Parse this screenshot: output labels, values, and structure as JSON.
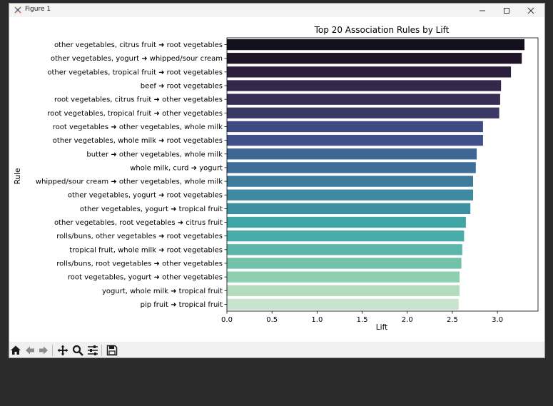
{
  "window": {
    "title": "Figure 1",
    "minimize_icon": "minimize-icon",
    "maximize_icon": "maximize-icon",
    "close_icon": "close-icon"
  },
  "toolbar": {
    "buttons": [
      "home-icon",
      "back-arrow-icon",
      "forward-arrow-icon",
      "pan-icon",
      "zoom-icon",
      "configure-subplots-icon",
      "save-icon"
    ]
  },
  "chart_data": {
    "type": "bar",
    "orientation": "horizontal",
    "title": "Top 20 Association Rules by Lift",
    "xlabel": "Lift",
    "ylabel": "Rule",
    "xlim": [
      0,
      3.45
    ],
    "xticks": [
      "0.0",
      "0.5",
      "1.0",
      "1.5",
      "2.0",
      "2.5",
      "3.0"
    ],
    "grid": false,
    "categories": [
      "other vegetables, citrus fruit ➜ root vegetables",
      "other vegetables, yogurt ➜ whipped/sour cream",
      "other vegetables, tropical fruit ➜ root vegetables",
      "beef ➜ root vegetables",
      "root vegetables, citrus fruit ➜ other vegetables",
      "root vegetables, tropical fruit ➜ other vegetables",
      "root vegetables ➜ other vegetables, whole milk",
      "other vegetables, whole milk ➜ root vegetables",
      "butter ➜ other vegetables, whole milk",
      "whole milk, curd ➜ yogurt",
      "whipped/sour cream ➜ other vegetables, whole milk",
      "other vegetables, yogurt ➜ root vegetables",
      "other vegetables, yogurt ➜ tropical fruit",
      "other vegetables, root vegetables ➜ citrus fruit",
      "rolls/buns, other vegetables ➜ root vegetables",
      "tropical fruit, whole milk ➜ root vegetables",
      "rolls/buns, root vegetables ➜ other vegetables",
      "root vegetables, yogurt ➜ other vegetables",
      "yogurt, whole milk ➜ tropical fruit",
      "pip fruit ➜ tropical fruit"
    ],
    "values": [
      3.3,
      3.27,
      3.15,
      3.04,
      3.03,
      3.02,
      2.84,
      2.84,
      2.77,
      2.76,
      2.73,
      2.73,
      2.7,
      2.65,
      2.63,
      2.61,
      2.6,
      2.58,
      2.58,
      2.57
    ],
    "colors": [
      "#140f1c",
      "#1f1428",
      "#2c1e3d",
      "#34284a",
      "#372d56",
      "#3b3865",
      "#3f4a80",
      "#40518a",
      "#3f6593",
      "#3f6e98",
      "#3e7c9d",
      "#3e8ba1",
      "#3d90a2",
      "#40a5a5",
      "#48aca8",
      "#5db6aa",
      "#72c1ab",
      "#8ecfb0",
      "#b3dcbf",
      "#c8e4cf"
    ]
  }
}
